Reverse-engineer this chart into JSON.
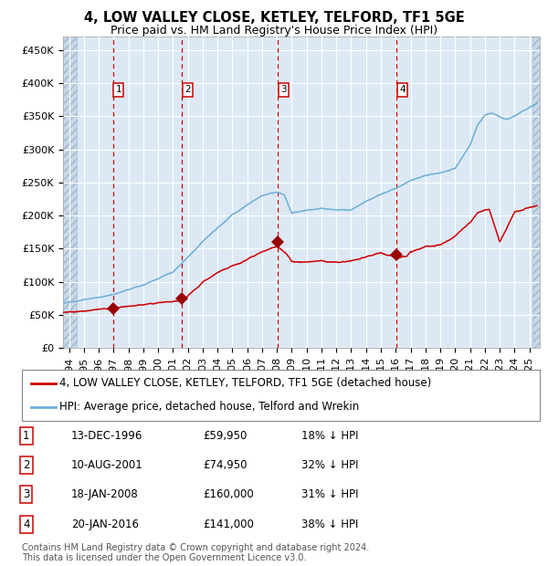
{
  "title": "4, LOW VALLEY CLOSE, KETLEY, TELFORD, TF1 5GE",
  "subtitle": "Price paid vs. HM Land Registry's House Price Index (HPI)",
  "ylim": [
    0,
    470000
  ],
  "yticks": [
    0,
    50000,
    100000,
    150000,
    200000,
    250000,
    300000,
    350000,
    400000,
    450000
  ],
  "ytick_labels": [
    "£0",
    "£50K",
    "£100K",
    "£150K",
    "£200K",
    "£250K",
    "£300K",
    "£350K",
    "£400K",
    "£450K"
  ],
  "xlim_start": 1993.6,
  "xlim_end": 2025.7,
  "plot_bg_color": "#dce9f5",
  "grid_color": "#ffffff",
  "red_line_color": "#cc0000",
  "blue_line_color": "#6baed6",
  "sale_marker_color": "#990000",
  "dashed_line_color": "#cc0000",
  "hatch_region_left_end": 1994.5,
  "hatch_region_right_start": 2025.2,
  "sales": [
    {
      "num": 1,
      "date_num": 1996.96,
      "price": 59950,
      "label": "13-DEC-1996",
      "price_str": "£59,950",
      "pct": "18% ↓ HPI"
    },
    {
      "num": 2,
      "date_num": 2001.61,
      "price": 74950,
      "label": "10-AUG-2001",
      "price_str": "£74,950",
      "pct": "32% ↓ HPI"
    },
    {
      "num": 3,
      "date_num": 2008.05,
      "price": 160000,
      "label": "18-JAN-2008",
      "price_str": "£160,000",
      "pct": "31% ↓ HPI"
    },
    {
      "num": 4,
      "date_num": 2016.05,
      "price": 141000,
      "label": "20-JAN-2016",
      "price_str": "£141,000",
      "pct": "38% ↓ HPI"
    }
  ],
  "legend_red_label": "4, LOW VALLEY CLOSE, KETLEY, TELFORD, TF1 5GE (detached house)",
  "legend_blue_label": "HPI: Average price, detached house, Telford and Wrekin",
  "footer": "Contains HM Land Registry data © Crown copyright and database right 2024.\nThis data is licensed under the Open Government Licence v3.0.",
  "title_fontsize": 10.5,
  "subtitle_fontsize": 9,
  "tick_fontsize": 8,
  "legend_fontsize": 8.5,
  "table_fontsize": 8.5,
  "footer_fontsize": 7
}
